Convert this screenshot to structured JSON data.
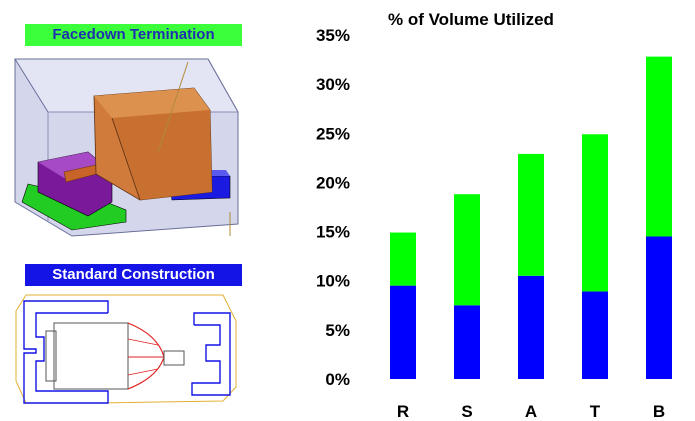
{
  "labels": {
    "facedown": "Facedown Termination",
    "standard": "Standard Construction"
  },
  "chart_data": {
    "type": "bar",
    "stacked": true,
    "title": "% of Volume Utilized",
    "categories": [
      "R",
      "S",
      "A",
      "T",
      "B"
    ],
    "series": [
      {
        "values": [
          9.5,
          7.5,
          10.5,
          8.9,
          14.5
        ],
        "color": "#0000ff"
      },
      {
        "values": [
          5.4,
          11.3,
          12.4,
          16.0,
          18.3
        ],
        "color": "#00ff00"
      }
    ],
    "ylim": [
      0,
      35
    ],
    "yticks": [
      0,
      5,
      10,
      15,
      20,
      25,
      30,
      35
    ],
    "ytick_format": "percent",
    "xlabel": "",
    "ylabel": "",
    "grid": false,
    "legend": "none"
  }
}
